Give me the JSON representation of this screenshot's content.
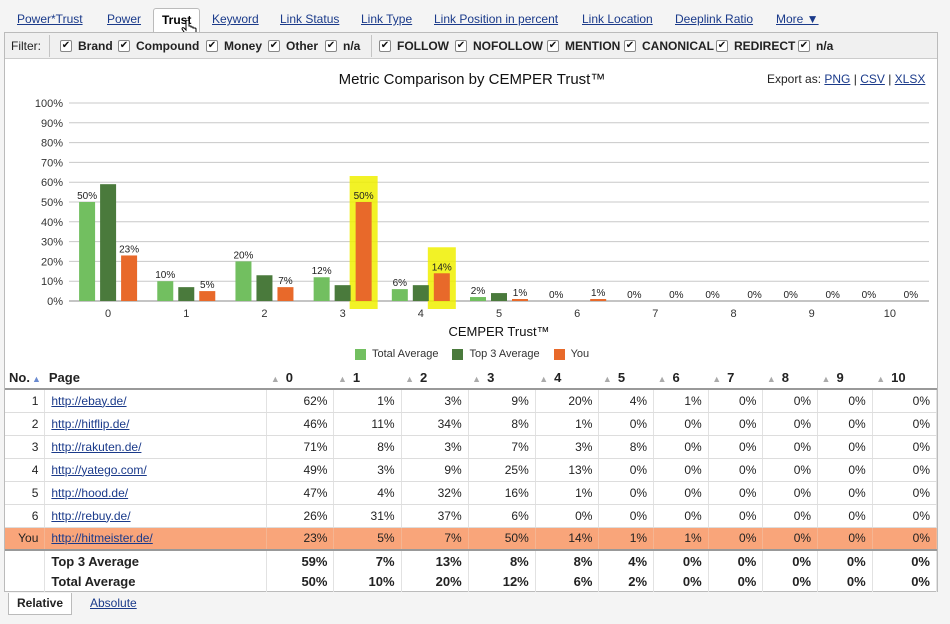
{
  "tabs": [
    {
      "label": "Power*Trust"
    },
    {
      "label": "Power"
    },
    {
      "label": "Trust"
    },
    {
      "label": "Keyword"
    },
    {
      "label": "Link Status"
    },
    {
      "label": "Link Type"
    },
    {
      "label": "Link Position in percent"
    },
    {
      "label": "Link Location"
    },
    {
      "label": "Deeplink Ratio"
    },
    {
      "label": "More ▼"
    }
  ],
  "active_tab": "Trust",
  "filter": {
    "label": "Filter:",
    "group1": [
      "Brand",
      "Compound",
      "Money",
      "Other",
      "n/a"
    ],
    "group2": [
      "FOLLOW",
      "NOFOLLOW",
      "MENTION",
      "CANONICAL",
      "REDIRECT",
      "n/a"
    ],
    "check_glyph": "✔"
  },
  "chart": {
    "title": "Metric Comparison by CEMPER Trust™",
    "export_label": "Export as:",
    "export_formats": [
      "PNG",
      "CSV",
      "XLSX"
    ]
  },
  "chart_data": {
    "type": "bar",
    "xlabel": "CEMPER Trust™",
    "ylabel": "",
    "ylim": [
      0,
      100
    ],
    "yticks": [
      "0%",
      "10%",
      "20%",
      "30%",
      "40%",
      "50%",
      "60%",
      "70%",
      "80%",
      "90%",
      "100%"
    ],
    "categories": [
      "0",
      "1",
      "2",
      "3",
      "4",
      "5",
      "6",
      "7",
      "8",
      "9",
      "10"
    ],
    "series": [
      {
        "name": "Total Average",
        "color": "#72bf60",
        "values": [
          50,
          10,
          20,
          12,
          6,
          2,
          0,
          0,
          0,
          0,
          0
        ]
      },
      {
        "name": "Top 3 Average",
        "color": "#4a7a3c",
        "values": [
          59,
          7,
          13,
          8,
          8,
          4,
          0,
          0,
          0,
          0,
          0
        ]
      },
      {
        "name": "You",
        "color": "#e8692a",
        "values": [
          23,
          5,
          7,
          50,
          14,
          1,
          1,
          0,
          0,
          0,
          0
        ]
      }
    ],
    "data_labels": [
      {
        "series": "Total Average",
        "index": 0,
        "text": "50%"
      },
      {
        "series": "Total Average",
        "index": 1,
        "text": "10%"
      },
      {
        "series": "Total Average",
        "index": 2,
        "text": "20%"
      },
      {
        "series": "Total Average",
        "index": 3,
        "text": "12%"
      },
      {
        "series": "Total Average",
        "index": 4,
        "text": "6%"
      },
      {
        "series": "Total Average",
        "index": 5,
        "text": "2%"
      },
      {
        "series": "You",
        "index": 0,
        "text": "23%"
      },
      {
        "series": "You",
        "index": 1,
        "text": "5%"
      },
      {
        "series": "You",
        "index": 2,
        "text": "7%"
      },
      {
        "series": "You",
        "index": 3,
        "text": "50%"
      },
      {
        "series": "You",
        "index": 4,
        "text": "14%"
      },
      {
        "series": "You",
        "index": 5,
        "text": "1%"
      },
      {
        "series": "You",
        "index": 6,
        "text": "1%"
      },
      {
        "series": "Total Average",
        "index": 6,
        "text": "0%"
      },
      {
        "series": "Total Average",
        "index": 7,
        "text": "0%"
      },
      {
        "series": "You",
        "index": 7,
        "text": "0%"
      },
      {
        "series": "Total Average",
        "index": 8,
        "text": "0%"
      },
      {
        "series": "You",
        "index": 8,
        "text": "0%"
      },
      {
        "series": "Total Average",
        "index": 9,
        "text": "0%"
      },
      {
        "series": "You",
        "index": 9,
        "text": "0%"
      },
      {
        "series": "Total Average",
        "index": 10,
        "text": "0%"
      },
      {
        "series": "You",
        "index": 10,
        "text": "0%"
      }
    ],
    "highlighted_categories": [
      3,
      4
    ],
    "highlight_color": "#f0f000",
    "grid": true,
    "legend": "bottom"
  },
  "table": {
    "columns": [
      "No.",
      "Page",
      "0",
      "1",
      "2",
      "3",
      "4",
      "5",
      "6",
      "7",
      "8",
      "9",
      "10"
    ],
    "rows": [
      {
        "no": "1",
        "page": "http://ebay.de/",
        "values": [
          "62%",
          "1%",
          "3%",
          "9%",
          "20%",
          "4%",
          "1%",
          "0%",
          "0%",
          "0%",
          "0%"
        ]
      },
      {
        "no": "2",
        "page": "http://hitflip.de/",
        "values": [
          "46%",
          "11%",
          "34%",
          "8%",
          "1%",
          "0%",
          "0%",
          "0%",
          "0%",
          "0%",
          "0%"
        ]
      },
      {
        "no": "3",
        "page": "http://rakuten.de/",
        "values": [
          "71%",
          "8%",
          "3%",
          "7%",
          "3%",
          "8%",
          "0%",
          "0%",
          "0%",
          "0%",
          "0%"
        ]
      },
      {
        "no": "4",
        "page": "http://yatego.com/",
        "values": [
          "49%",
          "3%",
          "9%",
          "25%",
          "13%",
          "0%",
          "0%",
          "0%",
          "0%",
          "0%",
          "0%"
        ]
      },
      {
        "no": "5",
        "page": "http://hood.de/",
        "values": [
          "47%",
          "4%",
          "32%",
          "16%",
          "1%",
          "0%",
          "0%",
          "0%",
          "0%",
          "0%",
          "0%"
        ]
      },
      {
        "no": "6",
        "page": "http://rebuy.de/",
        "values": [
          "26%",
          "31%",
          "37%",
          "6%",
          "0%",
          "0%",
          "0%",
          "0%",
          "0%",
          "0%",
          "0%"
        ]
      },
      {
        "no": "You",
        "page": "http://hitmeister.de/",
        "values": [
          "23%",
          "5%",
          "7%",
          "50%",
          "14%",
          "1%",
          "1%",
          "0%",
          "0%",
          "0%",
          "0%"
        ],
        "highlight": true
      }
    ],
    "summaries": [
      {
        "label": "Top 3 Average",
        "values": [
          "59%",
          "7%",
          "13%",
          "8%",
          "8%",
          "4%",
          "0%",
          "0%",
          "0%",
          "0%",
          "0%"
        ]
      },
      {
        "label": "Total Average",
        "values": [
          "50%",
          "10%",
          "20%",
          "12%",
          "6%",
          "2%",
          "0%",
          "0%",
          "0%",
          "0%",
          "0%"
        ]
      }
    ]
  },
  "bottom_tabs": {
    "active": "Relative",
    "other": "Absolute"
  }
}
